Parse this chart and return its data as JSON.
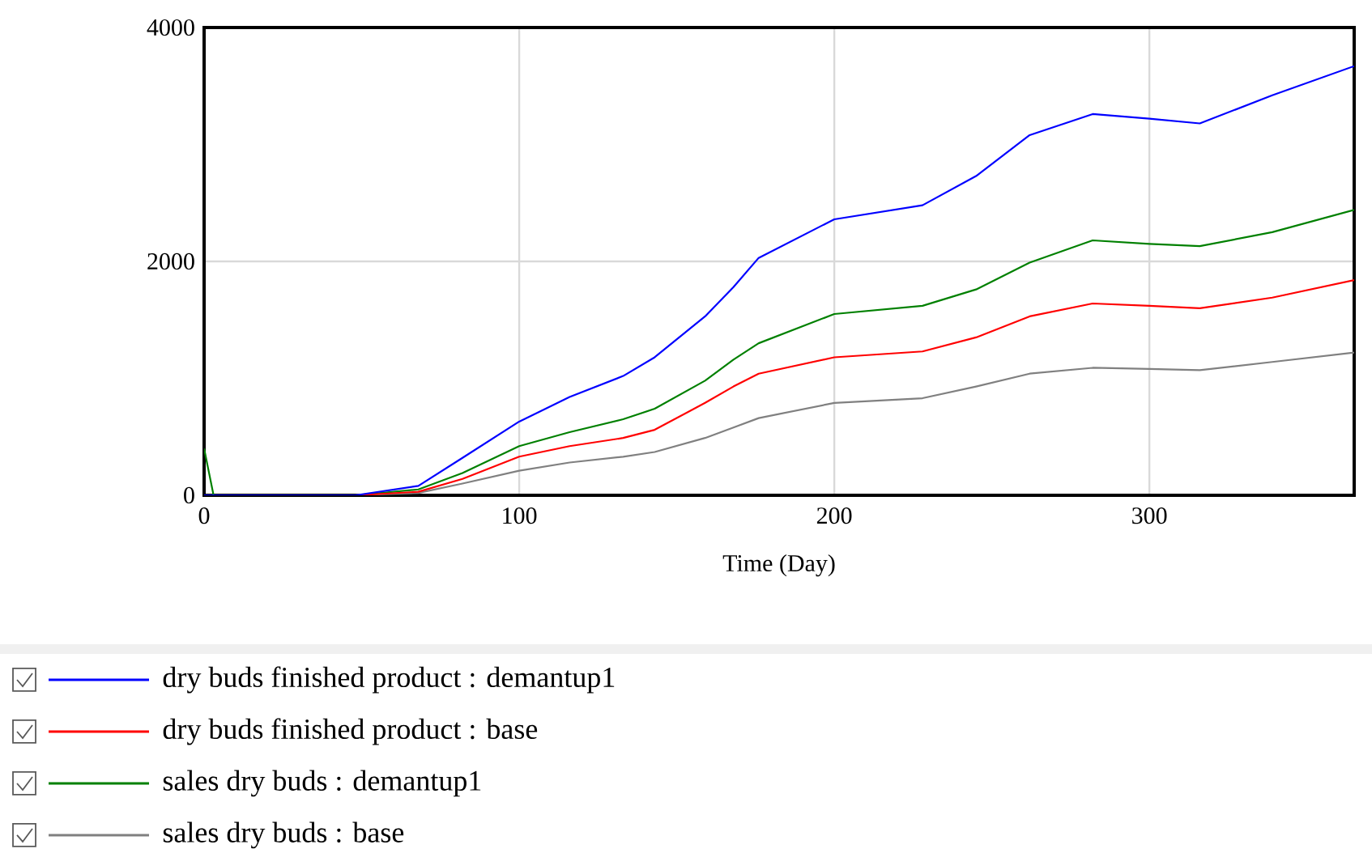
{
  "chart_data": {
    "type": "line",
    "xlabel": "Time (Day)",
    "xlim": [
      0,
      365
    ],
    "xticks": [
      0,
      100,
      200,
      300
    ],
    "ylim": [
      0,
      4000
    ],
    "yticks": [
      0,
      2000,
      4000
    ],
    "grid": true,
    "legend": "bottom",
    "series": [
      {
        "name": "dry buds finished product : demantup1",
        "color": "#0000ff",
        "x": [
          0,
          3,
          48,
          68,
          82,
          100,
          116,
          133,
          143,
          159,
          168,
          176,
          200,
          228,
          245,
          262,
          282,
          300,
          316,
          339,
          365
        ],
        "values": [
          0,
          0,
          0,
          80,
          320,
          630,
          840,
          1020,
          1180,
          1530,
          1780,
          2030,
          2360,
          2480,
          2730,
          3080,
          3260,
          3220,
          3180,
          3420,
          3670
        ]
      },
      {
        "name": "dry buds finished product : base",
        "color": "#ff0000",
        "x": [
          48,
          68,
          82,
          100,
          116,
          133,
          143,
          159,
          168,
          176,
          200,
          228,
          245,
          262,
          282,
          300,
          316,
          339,
          365
        ],
        "values": [
          0,
          30,
          140,
          330,
          420,
          490,
          560,
          790,
          930,
          1040,
          1180,
          1230,
          1350,
          1530,
          1640,
          1620,
          1600,
          1690,
          1840
        ]
      },
      {
        "name": "sales dry buds : demantup1",
        "color": "#008000",
        "x": [
          0,
          3,
          48,
          68,
          82,
          100,
          116,
          133,
          143,
          159,
          168,
          176,
          200,
          228,
          245,
          262,
          282,
          300,
          316,
          339,
          365
        ],
        "values": [
          400,
          0,
          0,
          50,
          190,
          420,
          540,
          650,
          740,
          980,
          1160,
          1300,
          1550,
          1620,
          1760,
          1990,
          2180,
          2150,
          2130,
          2250,
          2440
        ]
      },
      {
        "name": "sales dry buds : base",
        "color": "#808080",
        "x": [
          48,
          68,
          82,
          100,
          116,
          133,
          143,
          159,
          168,
          176,
          200,
          228,
          245,
          262,
          282,
          300,
          316,
          339,
          365
        ],
        "values": [
          0,
          20,
          100,
          210,
          280,
          330,
          370,
          490,
          580,
          660,
          790,
          830,
          930,
          1040,
          1090,
          1080,
          1070,
          1140,
          1220
        ]
      }
    ]
  }
}
